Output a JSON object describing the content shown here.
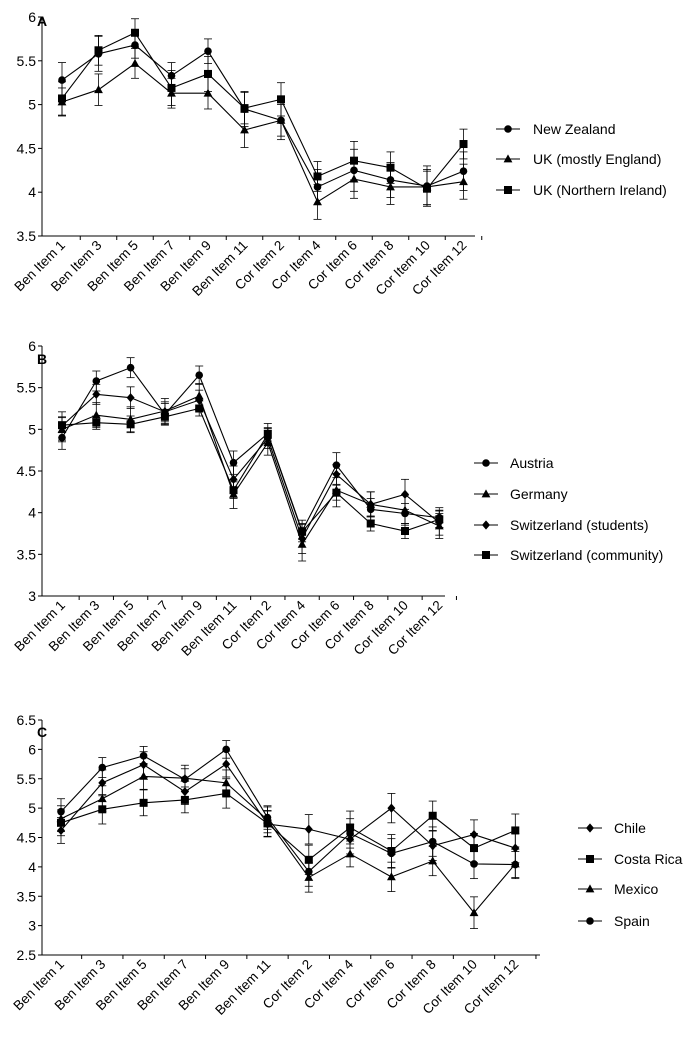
{
  "chart_data": [
    {
      "type": "line",
      "panel_label": "A",
      "categories": [
        "Ben Item 1",
        "Ben Item 3",
        "Ben Item 5",
        "Ben Item 7",
        "Ben Item 9",
        "Ben Item 11",
        "Cor Item 2",
        "Cor Item 4",
        "Cor Item 6",
        "Cor Item 8",
        "Cor Item 10",
        "Cor Item 12"
      ],
      "ylim": [
        3.5,
        6
      ],
      "yticks": [
        3.5,
        4,
        4.5,
        5,
        5.5,
        6
      ],
      "ytick_labels": [
        "3.5",
        "4",
        "4.5",
        "5",
        "5.5",
        "6"
      ],
      "legend_position": "right",
      "series": [
        {
          "name": "New Zealand",
          "marker": "circle",
          "values": [
            5.28,
            5.58,
            5.68,
            5.33,
            5.61,
            4.95,
            4.82,
            4.06,
            4.25,
            4.14,
            4.07,
            4.24
          ],
          "errors": [
            0.2,
            0.2,
            0.15,
            0.15,
            0.14,
            0.2,
            0.22,
            0.2,
            0.24,
            0.2,
            0.23,
            0.22
          ]
        },
        {
          "name": "UK (mostly England)",
          "marker": "triangle",
          "values": [
            5.03,
            5.17,
            5.47,
            5.13,
            5.13,
            4.71,
            4.82,
            3.89,
            4.15,
            4.06,
            4.06,
            4.12
          ],
          "errors": [
            0.16,
            0.18,
            0.17,
            0.17,
            0.18,
            0.2,
            0.18,
            0.2,
            0.22,
            0.2,
            0.2,
            0.2
          ]
        },
        {
          "name": "UK (Northern Ireland)",
          "marker": "square",
          "values": [
            5.07,
            5.62,
            5.82,
            5.19,
            5.35,
            4.96,
            5.06,
            4.18,
            4.36,
            4.28,
            4.04,
            4.55
          ],
          "errors": [
            0.19,
            0.17,
            0.16,
            0.2,
            0.2,
            0.18,
            0.19,
            0.17,
            0.22,
            0.18,
            0.2,
            0.17
          ]
        }
      ]
    },
    {
      "type": "line",
      "panel_label": "B",
      "categories": [
        "Ben Item 1",
        "Ben Item 3",
        "Ben Item 5",
        "Ben Item 7",
        "Ben Item 9",
        "Ben Item 11",
        "Cor Item 2",
        "Cor Item 4",
        "Cor Item 6",
        "Cor Item 8",
        "Cor Item 10",
        "Cor Item 12"
      ],
      "ylim": [
        3,
        6
      ],
      "yticks": [
        3,
        3.5,
        4,
        4.5,
        5,
        5.5,
        6
      ],
      "ytick_labels": [
        "3",
        "3.5",
        "4",
        "4.5",
        "5",
        "5.5",
        "6"
      ],
      "legend_position": "right",
      "series": [
        {
          "name": "Austria",
          "marker": "circle",
          "values": [
            4.9,
            5.58,
            5.74,
            5.18,
            5.65,
            4.6,
            4.95,
            3.78,
            4.57,
            4.04,
            3.99,
            3.94
          ],
          "errors": [
            0.14,
            0.12,
            0.12,
            0.13,
            0.11,
            0.14,
            0.12,
            0.13,
            0.15,
            0.13,
            0.12,
            0.12
          ]
        },
        {
          "name": "Germany",
          "marker": "triangle",
          "values": [
            5.0,
            5.17,
            5.12,
            5.22,
            5.4,
            4.22,
            4.84,
            3.62,
            4.27,
            4.1,
            4.03,
            3.84
          ],
          "errors": [
            0.15,
            0.15,
            0.15,
            0.15,
            0.15,
            0.17,
            0.15,
            0.2,
            0.2,
            0.15,
            0.18,
            0.15
          ]
        },
        {
          "name": "Switzerland (students)",
          "marker": "diamond",
          "values": [
            5.04,
            5.42,
            5.38,
            5.21,
            5.35,
            4.4,
            4.89,
            3.69,
            4.46,
            4.1,
            4.22,
            3.88
          ],
          "errors": [
            0.17,
            0.12,
            0.13,
            0.12,
            0.12,
            0.16,
            0.12,
            0.18,
            0.12,
            0.15,
            0.18,
            0.15
          ]
        },
        {
          "name": "Switzerland (community)",
          "marker": "square",
          "values": [
            5.05,
            5.08,
            5.06,
            5.15,
            5.25,
            4.27,
            4.94,
            3.77,
            4.24,
            3.87,
            3.78,
            3.92
          ],
          "errors": [
            0.09,
            0.08,
            0.1,
            0.09,
            0.09,
            0.1,
            0.08,
            0.09,
            0.09,
            0.09,
            0.09,
            0.1
          ]
        }
      ]
    },
    {
      "type": "line",
      "panel_label": "C",
      "categories": [
        "Ben Item 1",
        "Ben Item 3",
        "Ben Item 5",
        "Ben Item 7",
        "Ben Item 9",
        "Ben Item 11",
        "Cor Item 2",
        "Cor Item 4",
        "Cor Item 6",
        "Cor Item 8",
        "Cor Item 10",
        "Cor Item 12"
      ],
      "ylim": [
        2.5,
        6.5
      ],
      "yticks": [
        2.5,
        3,
        3.5,
        4,
        4.5,
        5,
        5.5,
        6,
        6.5
      ],
      "ytick_labels": [
        "2.5",
        "3",
        "3.5",
        "4",
        "4.5",
        "5",
        "5.5",
        "6",
        "6.5"
      ],
      "legend_position": "right",
      "series": [
        {
          "name": "Chile",
          "marker": "diamond",
          "values": [
            4.62,
            5.43,
            5.74,
            5.28,
            5.75,
            4.73,
            4.64,
            4.47,
            5.0,
            4.36,
            4.55,
            4.32
          ],
          "errors": [
            0.22,
            0.22,
            0.22,
            0.22,
            0.22,
            0.22,
            0.25,
            0.25,
            0.25,
            0.25,
            0.25,
            0.25
          ]
        },
        {
          "name": "Costa Rica",
          "marker": "square",
          "values": [
            4.75,
            4.98,
            5.09,
            5.14,
            5.25,
            4.74,
            4.12,
            4.67,
            4.27,
            4.87,
            4.32,
            4.62
          ],
          "errors": [
            0.22,
            0.25,
            0.22,
            0.22,
            0.25,
            0.22,
            0.25,
            0.28,
            0.28,
            0.25,
            0.25,
            0.28
          ]
        },
        {
          "name": "Mexico",
          "marker": "triangle",
          "values": [
            4.82,
            5.16,
            5.54,
            5.51,
            5.43,
            4.8,
            3.82,
            4.22,
            3.83,
            4.1,
            3.22,
            4.05
          ],
          "errors": [
            0.22,
            0.22,
            0.22,
            0.22,
            0.22,
            0.22,
            0.25,
            0.22,
            0.25,
            0.25,
            0.27,
            0.25
          ]
        },
        {
          "name": "Spain",
          "marker": "circle",
          "values": [
            4.94,
            5.69,
            5.89,
            5.49,
            6.0,
            4.84,
            3.92,
            4.57,
            4.23,
            4.43,
            4.05,
            4.04
          ],
          "errors": [
            0.22,
            0.17,
            0.16,
            0.18,
            0.15,
            0.2,
            0.25,
            0.25,
            0.25,
            0.25,
            0.25,
            0.22
          ]
        }
      ]
    }
  ]
}
